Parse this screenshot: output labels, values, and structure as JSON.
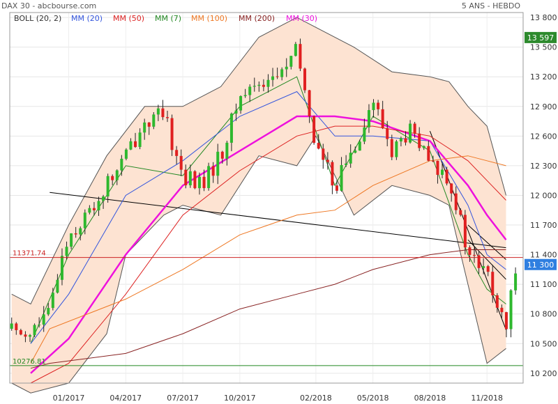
{
  "header": {
    "title": "DAX 30 - abcbourse.com",
    "period": "5 ANS - HEBDO"
  },
  "colors": {
    "up": "#2eb82e",
    "down": "#e02020",
    "band_fill": "#fde3d2",
    "band_line": "#555555",
    "boll": "#333333",
    "mm20": "#3355dd",
    "mm50": "#dd2222",
    "mm7": "#228822",
    "mm100": "#ee7722",
    "mm200": "#882222",
    "mm30": "#ee11dd",
    "trend": "#000000",
    "resistance": "#cc2222",
    "support": "#228822",
    "badge_high": "#2d8a2d",
    "badge_last": "#2f7fe0"
  },
  "legend": [
    {
      "label": "BOLL (20, 2)",
      "color": "#333333"
    },
    {
      "label": "MM (20)",
      "color": "#3355dd"
    },
    {
      "label": "MM (50)",
      "color": "#dd2222"
    },
    {
      "label": "MM (7)",
      "color": "#228822"
    },
    {
      "label": "MM (100)",
      "color": "#ee7722"
    },
    {
      "label": "MM (200)",
      "color": "#882222"
    },
    {
      "label": "MM (30)",
      "color": "#ee11dd"
    }
  ],
  "chart_data": {
    "type": "candlestick",
    "title": "DAX 30 - abcbourse.com",
    "subtitle": "5 ANS - HEBDO",
    "y_ticks": [
      10200,
      10500,
      10800,
      11100,
      11400,
      11700,
      12000,
      12300,
      12600,
      12900,
      13200,
      13500,
      13800
    ],
    "y_tick_labels": [
      "10 200",
      "10 500",
      "10 800",
      "11 100",
      "11 400",
      "11 700",
      "12 000",
      "12 300",
      "12 600",
      "12 900",
      "13 200",
      "13 500",
      "13 800"
    ],
    "ylim": [
      10100,
      13850
    ],
    "x_ticks": [
      "01/2017",
      "04/2017",
      "07/2017",
      "10/2017",
      "02/2018",
      "05/2018",
      "08/2018",
      "11/2018"
    ],
    "x_tick_dates": [
      "2017-01",
      "2017-04",
      "2017-07",
      "2017-10",
      "2018-02",
      "2018-05",
      "2018-08",
      "2018-11"
    ],
    "x_range": [
      "2016-10",
      "2018-12"
    ],
    "grid": true,
    "legend_position": "top-left",
    "close_path": [
      [
        "2016-10",
        10650
      ],
      [
        "2016-11",
        10620
      ],
      [
        "2016-12",
        10800
      ],
      [
        "2016-12",
        11300
      ],
      [
        "2017-01",
        11600
      ],
      [
        "2017-02",
        11800
      ],
      [
        "2017-03",
        12100
      ],
      [
        "2017-04",
        12400
      ],
      [
        "2017-05",
        12750
      ],
      [
        "2017-06",
        12800
      ],
      [
        "2017-07",
        12200
      ],
      [
        "2017-08",
        12100
      ],
      [
        "2017-09",
        12400
      ],
      [
        "2017-10",
        13000
      ],
      [
        "2017-11",
        13150
      ],
      [
        "2017-12",
        13200
      ],
      [
        "2018-01",
        13450
      ],
      [
        "2018-02",
        12500
      ],
      [
        "2018-03",
        12100
      ],
      [
        "2018-04",
        12500
      ],
      [
        "2018-05",
        12950
      ],
      [
        "2018-06",
        12450
      ],
      [
        "2018-07",
        12650
      ],
      [
        "2018-08",
        12300
      ],
      [
        "2018-09",
        12200
      ],
      [
        "2018-10",
        11400
      ],
      [
        "2018-11",
        11200
      ],
      [
        "2018-12",
        10600
      ],
      [
        "2018-12",
        11300
      ]
    ],
    "moving_averages": [
      {
        "name": "MM (7)",
        "points": [
          [
            "2016-11",
            10500
          ],
          [
            "2017-01",
            11400
          ],
          [
            "2017-04",
            12300
          ],
          [
            "2017-07",
            12200
          ],
          [
            "2017-10",
            12900
          ],
          [
            "2018-01",
            13200
          ],
          [
            "2018-03",
            12100
          ],
          [
            "2018-05",
            12800
          ],
          [
            "2018-08",
            12450
          ],
          [
            "2018-10",
            11400
          ],
          [
            "2018-11",
            11050
          ],
          [
            "2018-12",
            10900
          ]
        ]
      },
      {
        "name": "MM (20)",
        "points": [
          [
            "2016-11",
            10500
          ],
          [
            "2017-01",
            11000
          ],
          [
            "2017-04",
            12000
          ],
          [
            "2017-07",
            12350
          ],
          [
            "2017-10",
            12800
          ],
          [
            "2018-01",
            13050
          ],
          [
            "2018-03",
            12600
          ],
          [
            "2018-05",
            12600
          ],
          [
            "2018-08",
            12550
          ],
          [
            "2018-10",
            11900
          ],
          [
            "2018-11",
            11400
          ],
          [
            "2018-12",
            11250
          ]
        ]
      },
      {
        "name": "MM (30)",
        "points": [
          [
            "2016-11",
            10200
          ],
          [
            "2017-01",
            10550
          ],
          [
            "2017-04",
            11400
          ],
          [
            "2017-07",
            12100
          ],
          [
            "2017-10",
            12450
          ],
          [
            "2018-01",
            12800
          ],
          [
            "2018-03",
            12800
          ],
          [
            "2018-05",
            12750
          ],
          [
            "2018-08",
            12550
          ],
          [
            "2018-10",
            12100
          ],
          [
            "2018-11",
            11800
          ],
          [
            "2018-12",
            11550
          ]
        ]
      },
      {
        "name": "MM (50)",
        "points": [
          [
            "2016-11",
            10100
          ],
          [
            "2017-01",
            10300
          ],
          [
            "2017-04",
            11000
          ],
          [
            "2017-07",
            11800
          ],
          [
            "2017-10",
            12250
          ],
          [
            "2018-01",
            12600
          ],
          [
            "2018-03",
            12700
          ],
          [
            "2018-05",
            12700
          ],
          [
            "2018-08",
            12600
          ],
          [
            "2018-10",
            12350
          ],
          [
            "2018-11",
            12150
          ],
          [
            "2018-12",
            11950
          ]
        ]
      },
      {
        "name": "MM (100)",
        "points": [
          [
            "2016-11",
            10300
          ],
          [
            "2016-12",
            10650
          ],
          [
            "2017-04",
            10950
          ],
          [
            "2017-07",
            11250
          ],
          [
            "2017-10",
            11600
          ],
          [
            "2018-01",
            11800
          ],
          [
            "2018-03",
            11850
          ],
          [
            "2018-05",
            12100
          ],
          [
            "2018-08",
            12350
          ],
          [
            "2018-10",
            12400
          ],
          [
            "2018-11",
            12350
          ],
          [
            "2018-12",
            12300
          ]
        ]
      },
      {
        "name": "MM (200)",
        "points": [
          [
            "2016-11",
            10250
          ],
          [
            "2016-12",
            10300
          ],
          [
            "2017-04",
            10400
          ],
          [
            "2017-07",
            10600
          ],
          [
            "2017-10",
            10850
          ],
          [
            "2018-01",
            11000
          ],
          [
            "2018-03",
            11100
          ],
          [
            "2018-05",
            11250
          ],
          [
            "2018-08",
            11400
          ],
          [
            "2018-10",
            11450
          ],
          [
            "2018-11",
            11450
          ],
          [
            "2018-12",
            11450
          ]
        ]
      }
    ],
    "bollinger_upper": [
      [
        "2016-10",
        11000
      ],
      [
        "2016-11",
        10900
      ],
      [
        "2017-01",
        11700
      ],
      [
        "2017-03",
        12400
      ],
      [
        "2017-05",
        12900
      ],
      [
        "2017-07",
        12900
      ],
      [
        "2017-09",
        13100
      ],
      [
        "2017-11",
        13600
      ],
      [
        "2018-01",
        13800
      ],
      [
        "2018-02",
        13700
      ],
      [
        "2018-04",
        13500
      ],
      [
        "2018-06",
        13250
      ],
      [
        "2018-08",
        13200
      ],
      [
        "2018-09",
        13150
      ],
      [
        "2018-10",
        12900
      ],
      [
        "2018-11",
        12700
      ],
      [
        "2018-12",
        12000
      ]
    ],
    "bollinger_lower": [
      [
        "2016-10",
        10100
      ],
      [
        "2016-11",
        10000
      ],
      [
        "2017-01",
        10100
      ],
      [
        "2017-03",
        10600
      ],
      [
        "2017-04",
        11400
      ],
      [
        "2017-06",
        11800
      ],
      [
        "2017-07",
        11900
      ],
      [
        "2017-09",
        11800
      ],
      [
        "2017-11",
        12400
      ],
      [
        "2018-01",
        12300
      ],
      [
        "2018-02",
        12600
      ],
      [
        "2018-04",
        11800
      ],
      [
        "2018-06",
        12100
      ],
      [
        "2018-08",
        12000
      ],
      [
        "2018-09",
        11900
      ],
      [
        "2018-10",
        11100
      ],
      [
        "2018-11",
        10300
      ],
      [
        "2018-12",
        10450
      ]
    ],
    "horizontal_lines": [
      {
        "label": "11371.74",
        "value": 11371.74,
        "color": "#cc2222"
      },
      {
        "label": "10276.81",
        "value": 10276.81,
        "color": "#228822"
      }
    ],
    "trend_lines": [
      {
        "from": [
          "2016-12",
          12030
        ],
        "to": [
          "2018-12",
          11470
        ]
      },
      {
        "from": [
          "2018-10",
          11700
        ],
        "to": [
          "2018-12",
          11350
        ]
      },
      {
        "from": [
          "2018-08",
          12650
        ],
        "to": [
          "2018-12",
          10640
        ]
      },
      {
        "from": [
          "2018-10",
          11550
        ],
        "to": [
          "2018-12",
          11150
        ]
      }
    ],
    "price_badges": [
      {
        "label": "13 597",
        "value": 13597,
        "kind": "high"
      },
      {
        "label": "11 300",
        "value": 11300,
        "kind": "last"
      }
    ]
  }
}
